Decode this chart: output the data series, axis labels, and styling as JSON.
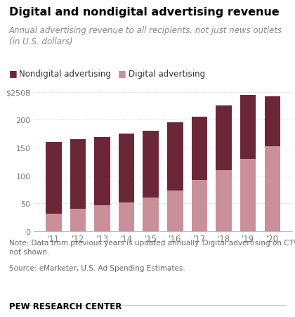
{
  "years": [
    "'11",
    "'12",
    "'13",
    "'14",
    "'15",
    "'16",
    "'17",
    "'18",
    "'19",
    "'20"
  ],
  "digital": [
    32,
    40,
    47,
    52,
    60,
    73,
    92,
    110,
    130,
    152
  ],
  "nondigital": [
    128,
    125,
    122,
    123,
    120,
    122,
    113,
    116,
    115,
    90
  ],
  "digital_color": "#c9909a",
  "nondigital_color": "#6b2737",
  "title": "Digital and nondigital advertising revenue",
  "subtitle": "Annual advertising revenue to all recipients, not just news outlets\n(in U.S. dollars)",
  "legend_nondigital": "Nondigital advertising",
  "legend_digital": "Digital advertising",
  "note": "Note: Data from previous years is updated annually. Digital advertising on CTV\nnot shown.",
  "source": "Source: eMarketer, U.S. Ad Spending Estimates.",
  "footer": "PEW RESEARCH CENTER",
  "ylim": [
    0,
    265
  ],
  "yticks": [
    0,
    50,
    100,
    150,
    200,
    250
  ],
  "ytick_labels": [
    "0",
    "50",
    "100",
    "150",
    "200",
    "$250B"
  ],
  "background_color": "#ffffff"
}
